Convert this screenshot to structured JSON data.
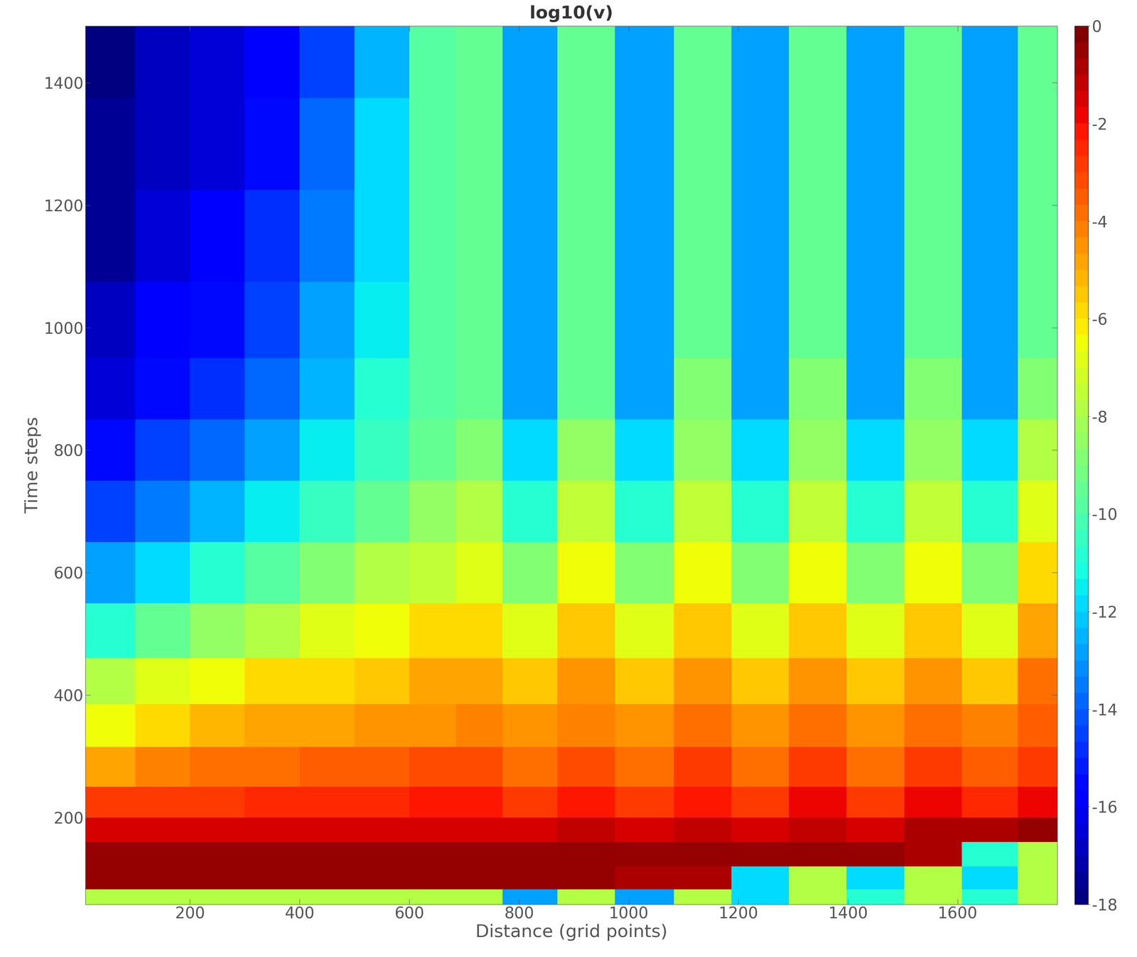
{
  "chart_data": {
    "type": "heatmap",
    "title": "log10(v)",
    "x_label": "Distance (grid points)",
    "y_label": "Time steps",
    "x": [
      50,
      150,
      250,
      350,
      450,
      550,
      650,
      720,
      820,
      920,
      1030,
      1135,
      1240,
      1345,
      1450,
      1555,
      1660,
      1760
    ],
    "y": [
      65,
      100,
      140,
      180,
      220,
      280,
      350,
      420,
      500,
      600,
      700,
      800,
      900,
      1000,
      1150,
      1300,
      1450
    ],
    "values": [
      [
        -8,
        -8,
        -8,
        -8,
        -8,
        -8,
        -8,
        -8,
        -13,
        -8,
        -13,
        -8,
        -12,
        -8,
        -11,
        -8,
        -11,
        -8
      ],
      [
        -0.5,
        -0.5,
        -0.5,
        -0.5,
        -0.5,
        -0.5,
        -0.5,
        -0.5,
        -0.5,
        -0.5,
        -1,
        -1,
        -12,
        -8,
        -12,
        -8,
        -12,
        -8
      ],
      [
        -0.5,
        -0.5,
        -0.5,
        -0.5,
        -0.5,
        -0.5,
        -0.5,
        -0.5,
        -0.5,
        -0.5,
        -0.5,
        -0.5,
        -0.5,
        -0.5,
        -0.5,
        -1,
        -11,
        -8
      ],
      [
        -1.5,
        -1.5,
        -1.5,
        -1.5,
        -1.5,
        -1.5,
        -1.4,
        -1.4,
        -1.5,
        -1.3,
        -1.5,
        -1.2,
        -1.5,
        -1.1,
        -1.5,
        -1,
        -0.8,
        -0.5
      ],
      [
        -3,
        -2.8,
        -2.7,
        -2.6,
        -2.5,
        -2.4,
        -2.3,
        -2.3,
        -3,
        -2.2,
        -3,
        -2.1,
        -3,
        -2,
        -3,
        -2,
        -2.5,
        -1.8
      ],
      [
        -5,
        -4.3,
        -4,
        -3.8,
        -3.6,
        -3.5,
        -3.3,
        -3.2,
        -3.8,
        -3.1,
        -3.8,
        -3,
        -3.8,
        -3,
        -3.8,
        -2.9,
        -3.5,
        -2.7
      ],
      [
        -6.5,
        -5.8,
        -5.3,
        -5,
        -4.8,
        -4.6,
        -4.4,
        -4.3,
        -4.5,
        -4.1,
        -4.5,
        -4,
        -4.5,
        -4,
        -4.5,
        -3.9,
        -4.3,
        -3.6
      ],
      [
        -8,
        -7,
        -6.5,
        -6,
        -6,
        -5.5,
        -5,
        -5,
        -5.5,
        -4.5,
        -5.5,
        -4.5,
        -5.5,
        -4.5,
        -5.5,
        -4.5,
        -5.5,
        -4
      ],
      [
        -11,
        -9.5,
        -8.5,
        -8,
        -7,
        -6.5,
        -6,
        -6,
        -7,
        -5.5,
        -7,
        -5.5,
        -7,
        -5.5,
        -7,
        -5.5,
        -7,
        -5
      ],
      [
        -13,
        -12,
        -11,
        -10,
        -9,
        -8,
        -7.5,
        -7,
        -9,
        -6.5,
        -9,
        -6.5,
        -9,
        -6.5,
        -9,
        -6.5,
        -9,
        -6
      ],
      [
        -14.5,
        -13.5,
        -12.5,
        -11.5,
        -10.5,
        -9.5,
        -8.5,
        -8,
        -11,
        -7.5,
        -11,
        -7.5,
        -11,
        -7.5,
        -11,
        -7.5,
        -11,
        -7
      ],
      [
        -15.5,
        -14.5,
        -14,
        -13,
        -11.5,
        -10.5,
        -9.5,
        -9,
        -12,
        -8.5,
        -12,
        -8.5,
        -12,
        -8.5,
        -12,
        -8.5,
        -12,
        -8
      ],
      [
        -16.5,
        -15.5,
        -15,
        -14,
        -12.5,
        -11,
        -10,
        -9.5,
        -13,
        -9.5,
        -13,
        -9,
        -13,
        -9,
        -13,
        -9,
        -13,
        -9
      ],
      [
        -17,
        -16,
        -15.5,
        -14.5,
        -13,
        -11.5,
        -10,
        -9.5,
        -13,
        -9.5,
        -13,
        -9.5,
        -13,
        -9.5,
        -13,
        -9.5,
        -13,
        -9.5
      ],
      [
        -17.5,
        -16.5,
        -16,
        -15,
        -13.5,
        -12,
        -10,
        -9.5,
        -13,
        -9.5,
        -13,
        -9.5,
        -13,
        -9.5,
        -13,
        -9.5,
        -13,
        -9.5
      ],
      [
        -17.5,
        -17,
        -16.5,
        -15.5,
        -14,
        -12,
        -10,
        -9.5,
        -13,
        -9.5,
        -13,
        -9.5,
        -13,
        -9.5,
        -13,
        -9.5,
        -13,
        -9.5
      ],
      [
        -18,
        -17,
        -16.5,
        -16,
        -14.5,
        -12.5,
        -10,
        -9.5,
        -13,
        -9.5,
        -13,
        -9.5,
        -13,
        -9.5,
        -13,
        -9.5,
        -13,
        -9.5
      ]
    ],
    "xlim": [
      9,
      1782
    ],
    "ylim": [
      58,
      1493
    ],
    "xticks": [
      200,
      400,
      600,
      800,
      1000,
      1200,
      1400,
      1600
    ],
    "yticks": [
      200,
      400,
      600,
      800,
      1000,
      1200,
      1400
    ],
    "colorbar_range": [
      -18,
      0
    ],
    "colorbar_ticks": [
      -18,
      -16,
      -14,
      -12,
      -10,
      -8,
      -6,
      -4,
      -2,
      0
    ]
  }
}
